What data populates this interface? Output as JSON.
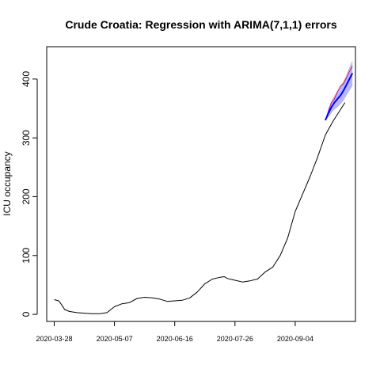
{
  "chart_data": {
    "type": "line",
    "title": "Crude Croatia: Regression with ARIMA(7,1,1) errors",
    "xlabel": "",
    "ylabel": "ICU occupancy",
    "x_tick_labels": [
      "2020-03-28",
      "2020-05-07",
      "2020-06-16",
      "2020-07-26",
      "2020-09-04"
    ],
    "x_tick_days": [
      0,
      40,
      80,
      120,
      160
    ],
    "x_range_days": [
      -5,
      200
    ],
    "x_origin_label": "2020-03-28",
    "y_ticks": [
      0,
      100,
      200,
      300,
      400
    ],
    "ylim": [
      -12,
      455
    ],
    "grid": false,
    "legend": "none",
    "series": [
      {
        "role": "observed",
        "color": "#000000",
        "x": [
          0,
          3,
          5,
          7,
          10,
          15,
          20,
          25,
          30,
          35,
          38,
          40,
          45,
          50,
          55,
          60,
          65,
          70,
          75,
          80,
          85,
          90,
          95,
          100,
          105,
          110,
          113,
          115,
          120,
          125,
          130,
          135,
          140,
          145,
          150,
          155,
          160,
          165,
          170,
          175,
          180,
          185,
          190,
          193
        ],
        "y": [
          25,
          23,
          16,
          8,
          5,
          3,
          2,
          1,
          1,
          3,
          9,
          13,
          18,
          20,
          27,
          29,
          28,
          26,
          22,
          23,
          24,
          28,
          38,
          52,
          60,
          63,
          64,
          61,
          58,
          55,
          57,
          60,
          72,
          80,
          100,
          130,
          175,
          205,
          235,
          268,
          305,
          328,
          348,
          360
        ]
      },
      {
        "role": "actual-test",
        "color": "#e41a1c",
        "x": [
          180,
          182,
          184,
          186,
          188,
          190,
          192,
          194,
          196,
          198
        ],
        "y": [
          330,
          345,
          360,
          366,
          378,
          388,
          392,
          402,
          413,
          422
        ]
      },
      {
        "role": "forecast-mean",
        "color": "#0000ff",
        "x": [
          180,
          182,
          184,
          186,
          188,
          190,
          192,
          194,
          196,
          198
        ],
        "y": [
          330,
          342,
          352,
          360,
          366,
          372,
          380,
          390,
          400,
          410
        ]
      }
    ],
    "forecast_band": {
      "color": "#7b7bff",
      "x": [
        180,
        182,
        184,
        186,
        188,
        190,
        192,
        194,
        196,
        198
      ],
      "lower": [
        330,
        335,
        342,
        348,
        352,
        357,
        363,
        372,
        380,
        388
      ],
      "upper": [
        330,
        350,
        362,
        372,
        380,
        388,
        396,
        407,
        420,
        432
      ]
    }
  }
}
